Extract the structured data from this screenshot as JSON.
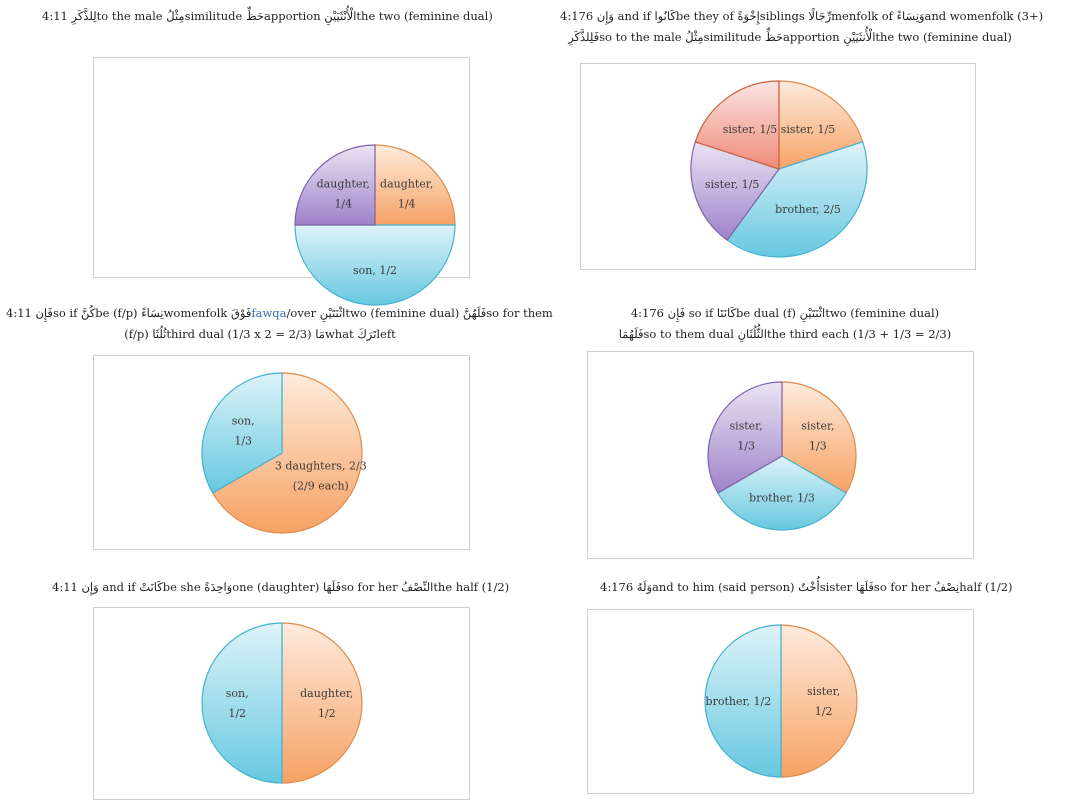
{
  "colors": {
    "orange": "#f6a264",
    "blue": "#67c8e0",
    "purple": "#9e82c9",
    "red": "#ee8a7a",
    "orange_edge": "#e08b49",
    "blue_edge": "#43b2cf",
    "purple_edge": "#7f63aa",
    "red_edge": "#c9603a"
  },
  "chart_data": [
    {
      "id": "c1",
      "type": "pie",
      "caption": {
        "lines": [
          "4:11  لِلذَّكَرِto the male  مِثْلُsimilitude  حَظِّapportion  الْأُنْثَيَيْنِthe two (feminine dual)"
        ]
      },
      "slices": [
        {
          "label": [
            "daughter,",
            "1/4"
          ],
          "value": 0.25,
          "color": "orange"
        },
        {
          "label": [
            "son,  1/2"
          ],
          "value": 0.5,
          "color": "blue"
        },
        {
          "label": [
            "daughter,",
            "1/4"
          ],
          "value": 0.25,
          "color": "purple"
        }
      ]
    },
    {
      "id": "c2",
      "type": "pie",
      "caption": {
        "lines": [
          "4:176  وَإِن and if  كَانُواbe they of  إِخْوَةًsiblings  رِّجَالًاmenfolk of  وَنِسَاءًand womenfolk (3+)",
          "فَلِلذَّكَرِso to the male  مِثْلُsimilitude  حَظِّapportion  الْأُنثَيَيْنِthe two (feminine dual)"
        ]
      },
      "slices": [
        {
          "label": [
            "sister,  1/5"
          ],
          "value": 0.2,
          "color": "orange"
        },
        {
          "label": [
            "brother,  2/5"
          ],
          "value": 0.4,
          "color": "blue"
        },
        {
          "label": [
            "sister,  1/5"
          ],
          "value": 0.2,
          "color": "purple"
        },
        {
          "label": [
            "sister,  1/5"
          ],
          "value": 0.2,
          "color": "red"
        }
      ]
    },
    {
      "id": "c3",
      "type": "pie",
      "caption": {
        "lines": [
          "4:11  فَإِنso if  كُنَّbe (f/p)  نِسَاءًwomenfolk  فَوْقَfawqa/over  اثْنَتَيْنِtwo (feminine dual)  فَلَهُنَّso for them",
          "(f/p)  ثُلُثَاthird dual (1/3 x 2 = 2/3)  مَاwhat  تَرَكَleft"
        ],
        "highlight": "fawqa"
      },
      "slices": [
        {
          "label": [
            "3 daughters, 2/3",
            "(2/9 each)"
          ],
          "value": 0.6667,
          "color": "orange"
        },
        {
          "label": [
            "son,",
            "1/3"
          ],
          "value": 0.3333,
          "color": "blue"
        }
      ]
    },
    {
      "id": "c4",
      "type": "pie",
      "caption": {
        "lines": [
          "4:176  فَإِن so if  كَانَتَاbe dual (f)  اثْنَتَيْنِtwo (feminine dual)",
          "فَلَهُمَاso to them dual  الثُّلُثَانِthe third each (1/3 + 1/3 = 2/3)"
        ]
      },
      "slices": [
        {
          "label": [
            "sister,",
            "1/3"
          ],
          "value": 0.3333,
          "color": "orange"
        },
        {
          "label": [
            "brother,  1/3"
          ],
          "value": 0.3333,
          "color": "blue"
        },
        {
          "label": [
            "sister,",
            "1/3"
          ],
          "value": 0.3334,
          "color": "purple"
        }
      ]
    },
    {
      "id": "c5",
      "type": "pie",
      "caption": {
        "lines": [
          "4:11  وَإِن and if  كَانَتْbe she  وَاحِدَةًone (daughter)  فَلَهَاso for her  النِّصْفُthe half (1/2)"
        ]
      },
      "slices": [
        {
          "label": [
            "daughter,",
            "1/2"
          ],
          "value": 0.5,
          "color": "orange"
        },
        {
          "label": [
            "son,",
            "1/2"
          ],
          "value": 0.5,
          "color": "blue"
        }
      ]
    },
    {
      "id": "c6",
      "type": "pie",
      "caption": {
        "lines": [
          "4:176  وَلَهُand to him (said person)  أُخْتٌsister  فَلَهَاso for her  نِصْفُhalf (1/2)"
        ]
      },
      "slices": [
        {
          "label": [
            "sister,",
            "1/2"
          ],
          "value": 0.5,
          "color": "orange"
        },
        {
          "label": [
            "brother,  1/2"
          ],
          "value": 0.5,
          "color": "blue"
        }
      ]
    }
  ]
}
